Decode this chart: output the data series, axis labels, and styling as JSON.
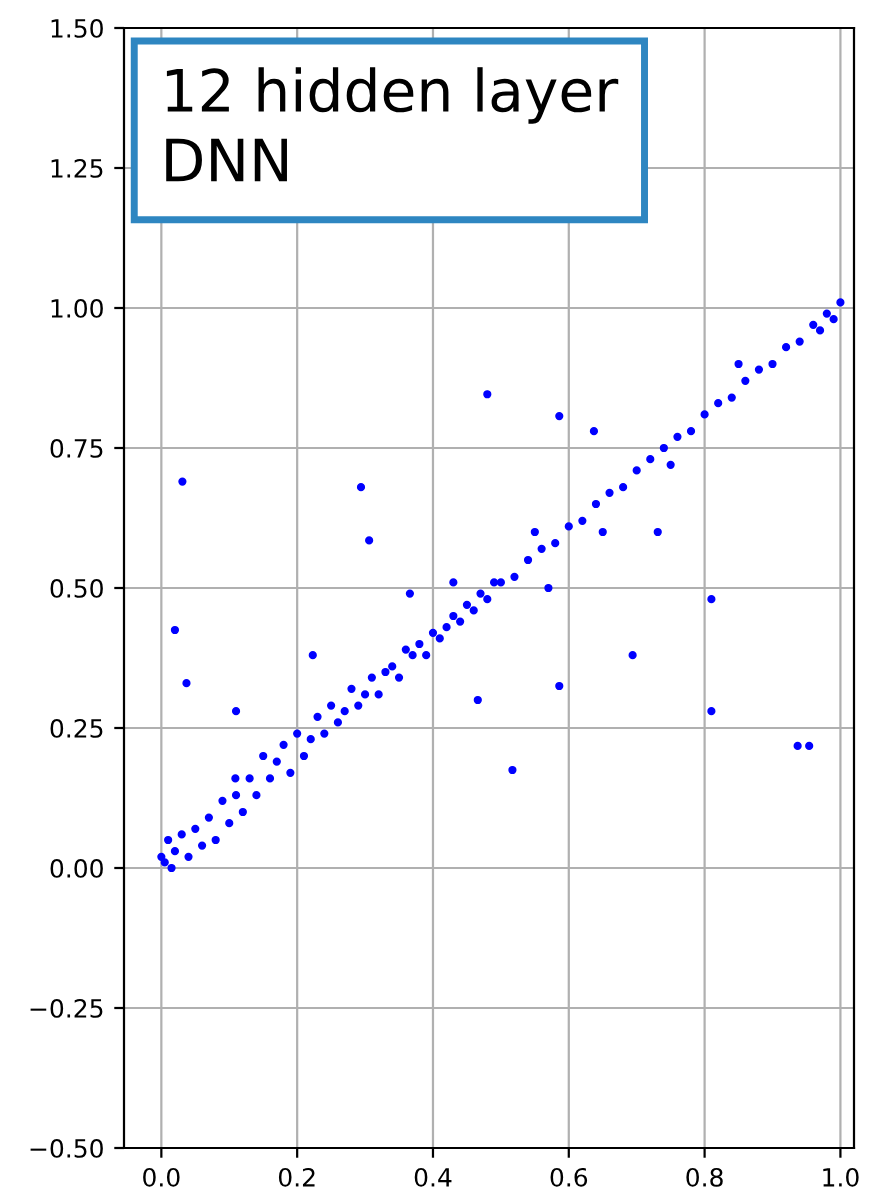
{
  "chart_data": {
    "type": "scatter",
    "annotations": [
      "12 hidden layer\nDNN"
    ],
    "series": [
      {
        "color": "#0000ff",
        "x": [
          0,
          0.005,
          0.01,
          0.015,
          0.02,
          0.03,
          0.04,
          0.05,
          0.06,
          0.07,
          0.08,
          0.09,
          0.1,
          0.11,
          0.12,
          0.13,
          0.14,
          0.15,
          0.16,
          0.17,
          0.18,
          0.19,
          0.2,
          0.21,
          0.22,
          0.23,
          0.24,
          0.25,
          0.26,
          0.27,
          0.28,
          0.29,
          0.3,
          0.31,
          0.32,
          0.33,
          0.34,
          0.35,
          0.36,
          0.37,
          0.38,
          0.39,
          0.4,
          0.41,
          0.42,
          0.43,
          0.44,
          0.45,
          0.46,
          0.47,
          0.48,
          0.49,
          0.5,
          0.52,
          0.54,
          0.56,
          0.58,
          0.6,
          0.62,
          0.64,
          0.66,
          0.68,
          0.7,
          0.72,
          0.74,
          0.76,
          0.78,
          0.8,
          0.82,
          0.84,
          0.86,
          0.88,
          0.9,
          0.92,
          0.94,
          0.96,
          0.98,
          1.0,
          0.99,
          0.97,
          0.85,
          0.75,
          0.65,
          0.55,
          0.57,
          0.031,
          0.02,
          0.037,
          0.11,
          0.294,
          0.48,
          0.43,
          0.466,
          0.517,
          0.586,
          0.586,
          0.637,
          0.694,
          0.731,
          0.81,
          0.81,
          0.937,
          0.954,
          0.306,
          0.366,
          0.223,
          0.109
        ],
        "values": [
          0.02,
          0.01,
          0.05,
          0.0,
          0.03,
          0.06,
          0.02,
          0.07,
          0.04,
          0.09,
          0.05,
          0.12,
          0.08,
          0.13,
          0.1,
          0.16,
          0.13,
          0.2,
          0.16,
          0.19,
          0.22,
          0.17,
          0.24,
          0.2,
          0.23,
          0.27,
          0.24,
          0.29,
          0.26,
          0.28,
          0.32,
          0.29,
          0.31,
          0.34,
          0.31,
          0.35,
          0.36,
          0.34,
          0.39,
          0.38,
          0.4,
          0.38,
          0.42,
          0.41,
          0.43,
          0.45,
          0.44,
          0.47,
          0.46,
          0.49,
          0.48,
          0.51,
          0.51,
          0.52,
          0.55,
          0.57,
          0.58,
          0.61,
          0.62,
          0.65,
          0.67,
          0.68,
          0.71,
          0.73,
          0.75,
          0.77,
          0.78,
          0.81,
          0.83,
          0.84,
          0.87,
          0.89,
          0.9,
          0.93,
          0.94,
          0.97,
          0.99,
          1.01,
          0.98,
          0.96,
          0.9,
          0.72,
          0.6,
          0.6,
          0.5,
          0.69,
          0.425,
          0.33,
          0.28,
          0.68,
          0.846,
          0.51,
          0.3,
          0.175,
          0.807,
          0.325,
          0.78,
          0.38,
          0.6,
          0.48,
          0.28,
          0.218,
          0.218,
          0.585,
          0.49,
          0.38,
          0.16
        ]
      }
    ],
    "xlim": [
      -0.055,
      1.02
    ],
    "ylim": [
      -0.5,
      1.5
    ],
    "xticks": [
      {
        "value": 0.0,
        "label": "0.0"
      },
      0.2,
      0.4,
      0.6,
      0.8,
      {
        "value": 1.0,
        "label": "1.0"
      }
    ],
    "yticks": [
      {
        "value": -0.5,
        "label": "−0.50"
      },
      {
        "value": -0.25,
        "label": "−0.25"
      },
      {
        "value": 0.0,
        "label": "0.00"
      },
      0.25,
      {
        "value": 0.5,
        "label": "0.50"
      },
      {
        "value": 0.75,
        "label": "0.75"
      },
      {
        "value": 1.0,
        "label": "1.00"
      },
      {
        "value": 1.25,
        "label": "1.25"
      },
      {
        "value": 1.5,
        "label": "1.50"
      }
    ],
    "grid": true,
    "marker": "circle"
  }
}
